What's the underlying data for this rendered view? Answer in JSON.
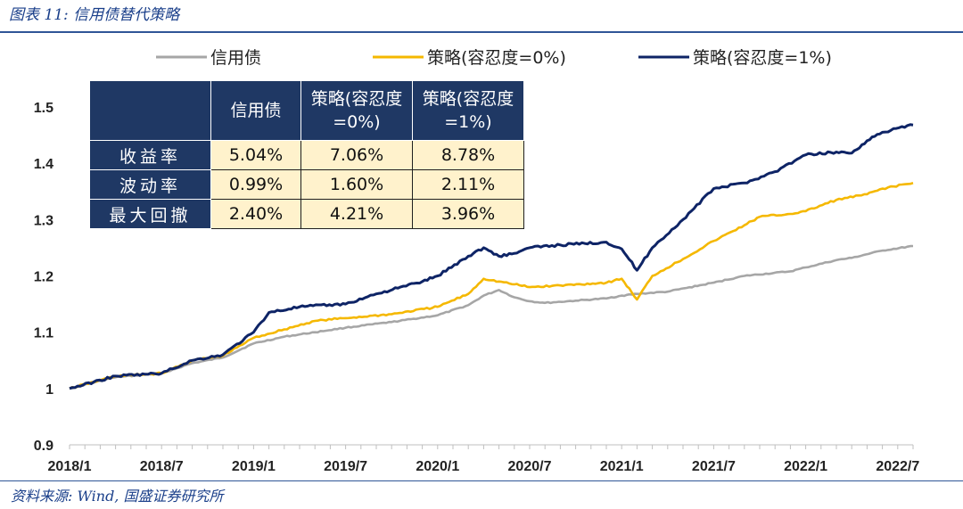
{
  "figure_title": "图表 11:  信用债替代策略",
  "source": "资料来源:  Wind,  国盛证券研究所",
  "legend": [
    "信用债",
    "策略(容忍度=0%)",
    "策略(容忍度=1%)"
  ],
  "stats_table": {
    "header": [
      "",
      "信用债",
      "策略(容忍度=0%)",
      "策略(容忍度=1%)"
    ],
    "rows": [
      {
        "label": "收益率",
        "values": [
          "5.04%",
          "7.06%",
          "8.78%"
        ]
      },
      {
        "label": "波动率",
        "values": [
          "0.99%",
          "1.60%",
          "2.11%"
        ]
      },
      {
        "label": "最大回撤",
        "values": [
          "2.40%",
          "4.21%",
          "3.96%"
        ]
      }
    ]
  },
  "chart_data": {
    "type": "line",
    "title": "信用债替代策略",
    "xlabel": "",
    "ylabel": "",
    "ylim": [
      0.9,
      1.5
    ],
    "y_ticks": [
      "0.9",
      "1",
      "1.1",
      "1.2",
      "1.3",
      "1.4",
      "1.5"
    ],
    "x_ticks": [
      "2018/1",
      "2018/7",
      "2019/1",
      "2019/7",
      "2020/1",
      "2020/7",
      "2021/1",
      "2021/7",
      "2022/1",
      "2022/7"
    ],
    "x_range": [
      "2018/1",
      "2022/8"
    ],
    "grid": false,
    "legend_position": "top",
    "series": [
      {
        "name": "信用债",
        "color": "#a6a6a6",
        "points": [
          [
            "2018/1",
            1.0
          ],
          [
            "2018/4",
            1.02
          ],
          [
            "2018/7",
            1.027
          ],
          [
            "2018/9",
            1.045
          ],
          [
            "2018/11",
            1.055
          ],
          [
            "2019/1",
            1.08
          ],
          [
            "2019/3",
            1.092
          ],
          [
            "2019/5",
            1.1
          ],
          [
            "2019/7",
            1.108
          ],
          [
            "2019/10",
            1.118
          ],
          [
            "2020/1",
            1.13
          ],
          [
            "2020/3",
            1.148
          ],
          [
            "2020/4",
            1.165
          ],
          [
            "2020/5",
            1.175
          ],
          [
            "2020/6",
            1.162
          ],
          [
            "2020/7",
            1.155
          ],
          [
            "2020/8",
            1.152
          ],
          [
            "2020/10",
            1.156
          ],
          [
            "2020/12",
            1.16
          ],
          [
            "2021/1",
            1.165
          ],
          [
            "2021/2",
            1.168
          ],
          [
            "2021/4",
            1.172
          ],
          [
            "2021/7",
            1.188
          ],
          [
            "2021/9",
            1.2
          ],
          [
            "2021/12",
            1.208
          ],
          [
            "2022/1",
            1.215
          ],
          [
            "2022/3",
            1.228
          ],
          [
            "2022/4",
            1.232
          ],
          [
            "2022/6",
            1.245
          ],
          [
            "2022/8",
            1.253
          ]
        ]
      },
      {
        "name": "策略(容忍度=0%)",
        "color": "#f5b800",
        "points": [
          [
            "2018/1",
            1.0
          ],
          [
            "2018/4",
            1.022
          ],
          [
            "2018/7",
            1.027
          ],
          [
            "2018/9",
            1.05
          ],
          [
            "2018/11",
            1.058
          ],
          [
            "2019/1",
            1.09
          ],
          [
            "2019/3",
            1.105
          ],
          [
            "2019/5",
            1.12
          ],
          [
            "2019/7",
            1.125
          ],
          [
            "2019/10",
            1.132
          ],
          [
            "2020/1",
            1.145
          ],
          [
            "2020/3",
            1.168
          ],
          [
            "2020/4",
            1.195
          ],
          [
            "2020/5",
            1.19
          ],
          [
            "2020/6",
            1.185
          ],
          [
            "2020/7",
            1.18
          ],
          [
            "2020/9",
            1.183
          ],
          [
            "2020/12",
            1.188
          ],
          [
            "2021/1",
            1.195
          ],
          [
            "2021/2",
            1.158
          ],
          [
            "2021/3",
            1.2
          ],
          [
            "2021/5",
            1.23
          ],
          [
            "2021/7",
            1.262
          ],
          [
            "2021/9",
            1.29
          ],
          [
            "2021/10",
            1.305
          ],
          [
            "2021/12",
            1.31
          ],
          [
            "2022/1",
            1.315
          ],
          [
            "2022/3",
            1.335
          ],
          [
            "2022/5",
            1.345
          ],
          [
            "2022/6",
            1.355
          ],
          [
            "2022/8",
            1.365
          ]
        ]
      },
      {
        "name": "策略(容忍度=1%)",
        "color": "#0e2466",
        "points": [
          [
            "2018/1",
            1.0
          ],
          [
            "2018/4",
            1.022
          ],
          [
            "2018/7",
            1.027
          ],
          [
            "2018/9",
            1.05
          ],
          [
            "2018/11",
            1.06
          ],
          [
            "2019/1",
            1.1
          ],
          [
            "2019/2",
            1.135
          ],
          [
            "2019/4",
            1.145
          ],
          [
            "2019/7",
            1.15
          ],
          [
            "2019/9",
            1.168
          ],
          [
            "2019/12",
            1.19
          ],
          [
            "2020/1",
            1.2
          ],
          [
            "2020/3",
            1.235
          ],
          [
            "2020/4",
            1.25
          ],
          [
            "2020/5",
            1.235
          ],
          [
            "2020/6",
            1.24
          ],
          [
            "2020/7",
            1.25
          ],
          [
            "2020/9",
            1.255
          ],
          [
            "2020/12",
            1.26
          ],
          [
            "2021/1",
            1.248
          ],
          [
            "2021/2",
            1.21
          ],
          [
            "2021/3",
            1.25
          ],
          [
            "2021/5",
            1.3
          ],
          [
            "2021/7",
            1.355
          ],
          [
            "2021/9",
            1.365
          ],
          [
            "2021/11",
            1.385
          ],
          [
            "2022/1",
            1.415
          ],
          [
            "2022/3",
            1.42
          ],
          [
            "2022/4",
            1.418
          ],
          [
            "2022/5",
            1.44
          ],
          [
            "2022/6",
            1.455
          ],
          [
            "2022/8",
            1.468
          ]
        ]
      }
    ]
  }
}
